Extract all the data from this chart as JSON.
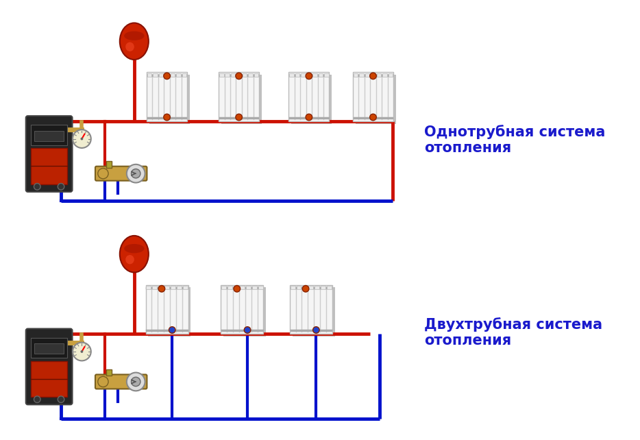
{
  "bg_color": "#ffffff",
  "label1": "Однотрубная система\nотопления",
  "label2": "Двухтрубная система\nотопления",
  "label_color": "#1a1acc",
  "label_fontsize": 15,
  "red_color": "#cc1100",
  "blue_color": "#0011cc",
  "pipe_lw": 3.5,
  "tank_color": "#cc2200",
  "fitting_color": "#c8a040"
}
